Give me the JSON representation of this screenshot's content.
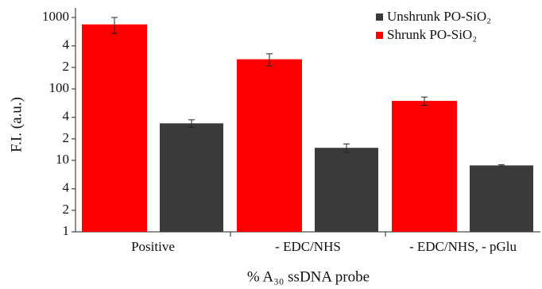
{
  "chart_data": {
    "type": "bar",
    "y_label": "F.I. (a.u.)",
    "x_label": "% A₃₀ ssDNA probe",
    "categories": [
      "Positive",
      "- EDC/NHS",
      "- EDC/NHS, - pGlu"
    ],
    "series": [
      {
        "name": "Shrunk PO-SiO₂",
        "color": "#ff0000",
        "values": [
          800,
          260,
          68
        ],
        "errors": [
          200,
          50,
          9
        ]
      },
      {
        "name": "Unshrunk PO-SiO₂",
        "color": "#3a3a3a",
        "values": [
          33,
          15,
          8.5
        ],
        "errors": [
          4,
          2,
          0.2
        ]
      }
    ],
    "legend_order": [
      1,
      0
    ],
    "yscale": "log",
    "ylim": [
      1,
      1000
    ],
    "yticks": [
      1,
      {
        "value": 2,
        "label": "2"
      },
      {
        "value": 4,
        "label": "4"
      },
      10,
      {
        "value": 20,
        "label": "2"
      },
      {
        "value": 40,
        "label": "4"
      },
      100,
      {
        "value": 200,
        "label": "2"
      },
      {
        "value": 400,
        "label": "4"
      },
      1000
    ],
    "legend": "upper right"
  }
}
